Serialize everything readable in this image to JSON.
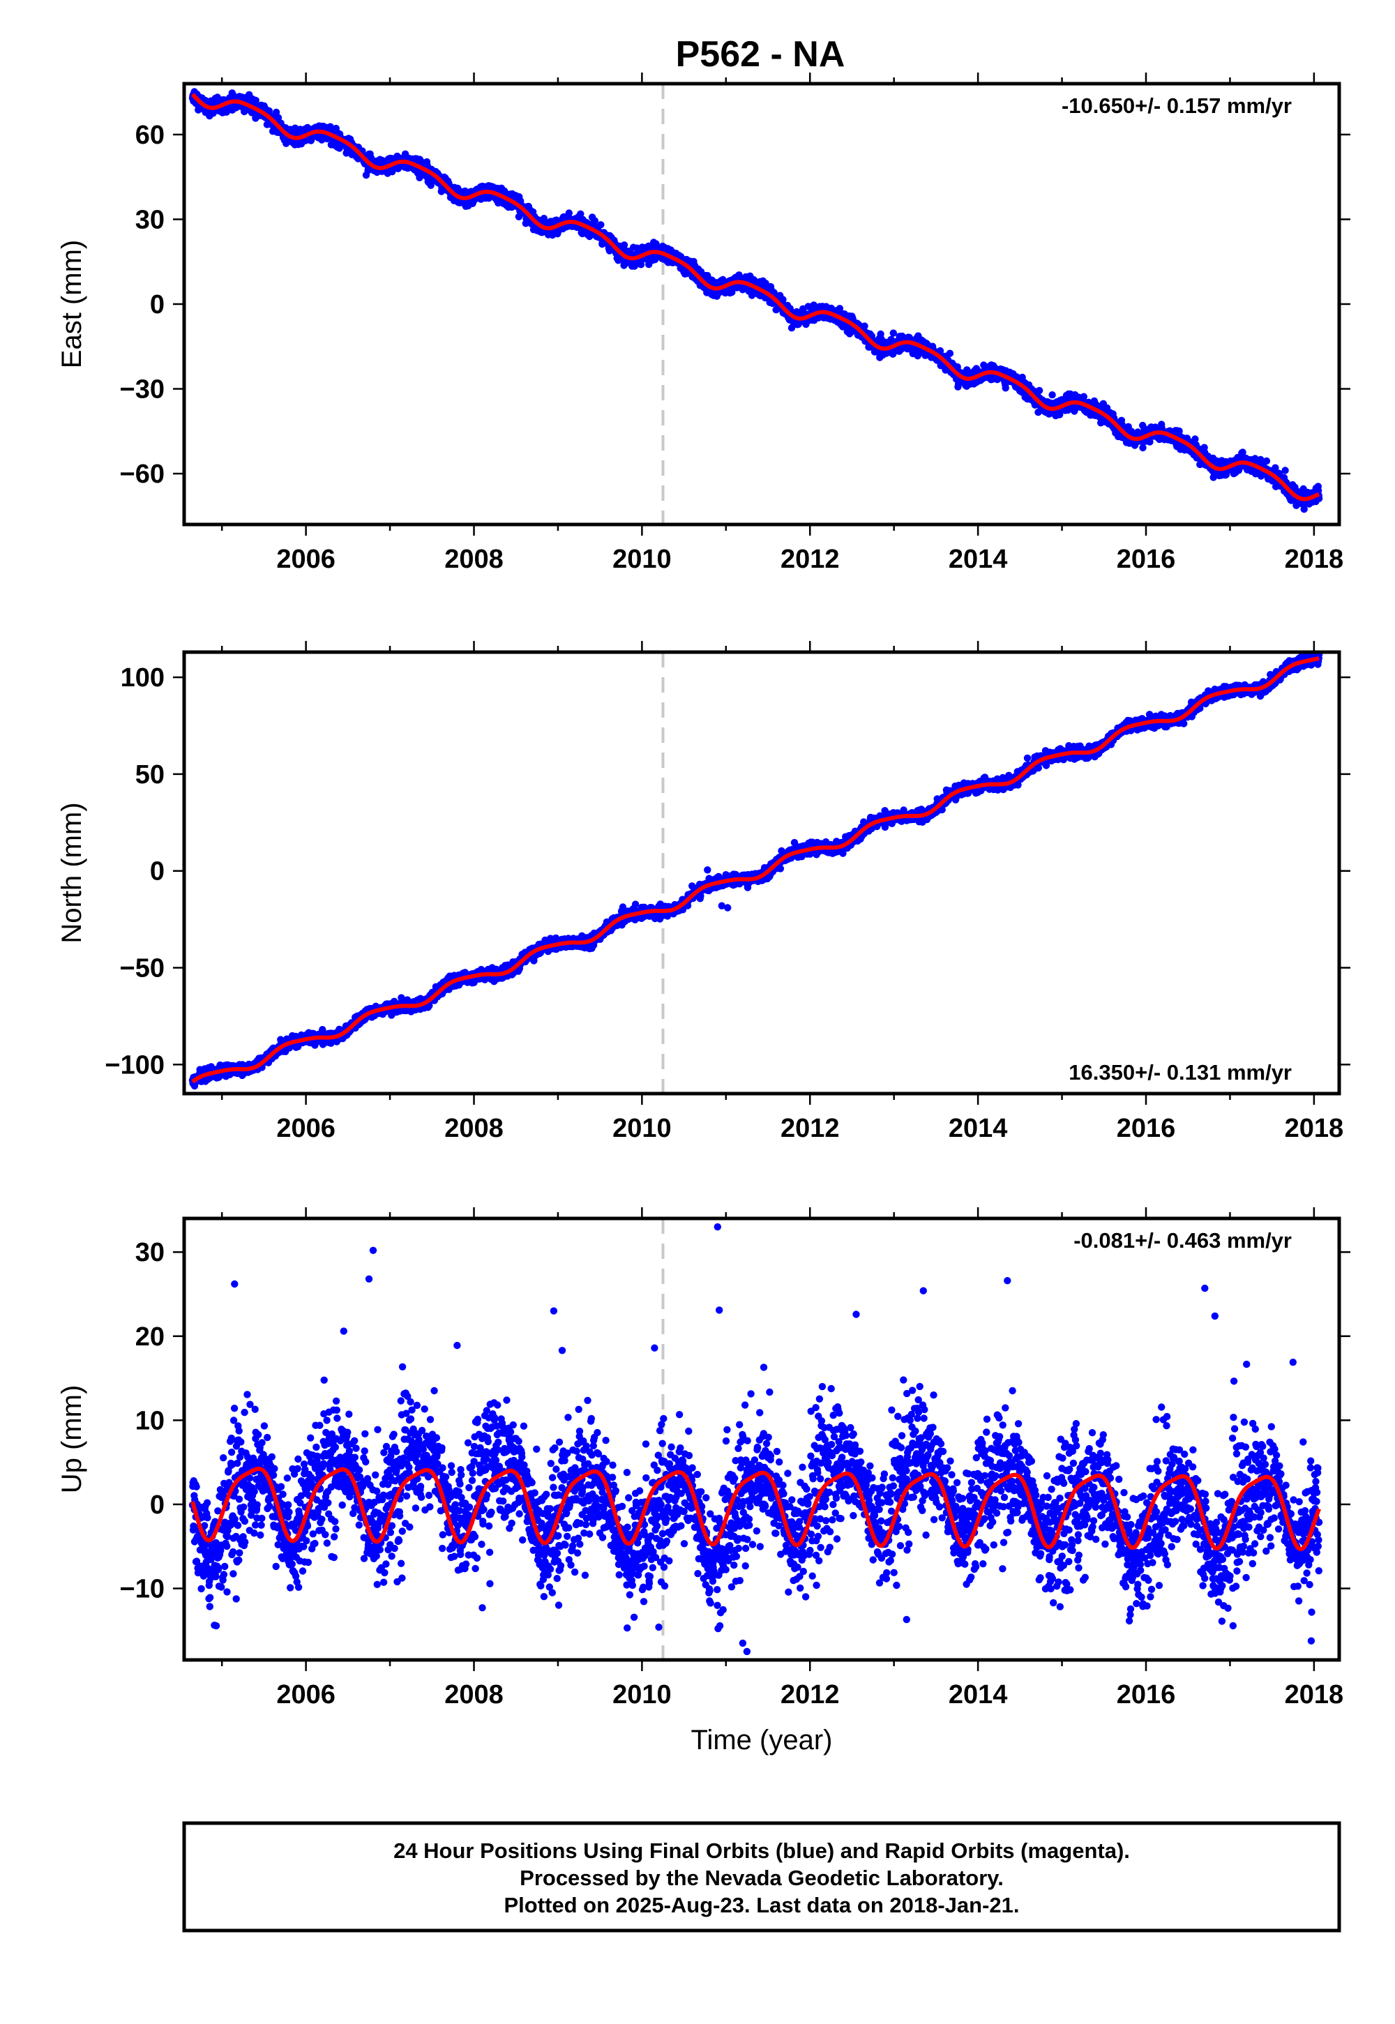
{
  "figure_title": "P562 - NA",
  "footer": {
    "lines": [
      "24 Hour Positions Using Final Orbits (blue) and Rapid Orbits (magenta).",
      "Processed by the Nevada Geodetic Laboratory.",
      "Plotted on 2025-Aug-23. Last data on 2018-Jan-21."
    ]
  },
  "colors": {
    "data": "#0000ff",
    "model": "#ff0000",
    "event_line": "#c8c8c8",
    "frame": "#000000"
  },
  "chart_data": [
    {
      "type": "scatter",
      "component": "east",
      "ylabel": "East (mm)",
      "xlabel": "",
      "xlim": [
        2004.55,
        2018.3
      ],
      "ylim": [
        -78,
        78
      ],
      "x_ticks": [
        2006,
        2008,
        2010,
        2012,
        2014,
        2016,
        2018
      ],
      "y_ticks": [
        -60,
        -30,
        0,
        30,
        60
      ],
      "y_tick_labels": [
        "−60",
        "−30",
        "0",
        "30",
        "60"
      ],
      "x_tick_labels": [
        "2006",
        "2008",
        "2010",
        "2012",
        "2014",
        "2016",
        "2018"
      ],
      "grid": false,
      "rate_text": "-10.650+/- 0.157 mm/yr",
      "rate_position": "top-right",
      "event_line_x": 2010.25,
      "data_range": [
        2004.65,
        2018.06
      ],
      "trend": {
        "rate": -10.65,
        "value_at_2011": 7.5
      },
      "seasonal": {
        "amp_sin": 2.6,
        "amp_cos": -1.2,
        "amp_sin2": 0.6,
        "amp_cos2": 0.2
      },
      "noise_sigma": 1.3,
      "outliers": []
    },
    {
      "type": "scatter",
      "component": "north",
      "ylabel": "North (mm)",
      "xlabel": "",
      "xlim": [
        2004.55,
        2018.3
      ],
      "ylim": [
        -115,
        113
      ],
      "x_ticks": [
        2006,
        2008,
        2010,
        2012,
        2014,
        2016,
        2018
      ],
      "y_ticks": [
        -100,
        -50,
        0,
        50,
        100
      ],
      "y_tick_labels": [
        "−100",
        "−50",
        "0",
        "50",
        "100"
      ],
      "x_tick_labels": [
        "2006",
        "2008",
        "2010",
        "2012",
        "2014",
        "2016",
        "2018"
      ],
      "grid": false,
      "rate_text": "16.350+/- 0.131 mm/yr",
      "rate_position": "bottom-right",
      "event_line_x": 2010.25,
      "data_range": [
        2004.65,
        2018.06
      ],
      "trend": {
        "rate": 16.35,
        "value_at_2011": -6.5
      },
      "seasonal": {
        "amp_sin": -2.2,
        "amp_cos": 1.6,
        "amp_sin2": 0.5,
        "amp_cos2": -0.3
      },
      "noise_sigma": 1.4,
      "outliers": [
        [
          2010.78,
          0.5
        ],
        [
          2010.95,
          -18
        ],
        [
          2011.02,
          -19
        ]
      ]
    },
    {
      "type": "scatter",
      "component": "up",
      "ylabel": "Up (mm)",
      "xlabel": "Time (year)",
      "xlim": [
        2004.55,
        2018.3
      ],
      "ylim": [
        -18.5,
        34
      ],
      "x_ticks": [
        2006,
        2008,
        2010,
        2012,
        2014,
        2016,
        2018
      ],
      "y_ticks": [
        -10,
        0,
        10,
        20,
        30
      ],
      "y_tick_labels": [
        "−10",
        "0",
        "10",
        "20",
        "30"
      ],
      "x_tick_labels": [
        "2006",
        "2008",
        "2010",
        "2012",
        "2014",
        "2016",
        "2018"
      ],
      "grid": false,
      "rate_text": "-0.081+/- 0.463 mm/yr",
      "rate_position": "top-right",
      "event_line_x": 2010.25,
      "data_range": [
        2004.65,
        2018.06
      ],
      "trend": {
        "rate": -0.081,
        "value_at_2011": 0.3
      },
      "seasonal": {
        "amp_sin": 3.2,
        "amp_cos": -2.6,
        "amp_sin2": 0.8,
        "amp_cos2": 0.6
      },
      "noise_sigma": 3.4,
      "outliers": [
        [
          2005.15,
          26.2
        ],
        [
          2006.45,
          20.6
        ],
        [
          2006.75,
          26.8
        ],
        [
          2006.8,
          30.2
        ],
        [
          2007.8,
          18.9
        ],
        [
          2008.95,
          23.0
        ],
        [
          2009.05,
          18.3
        ],
        [
          2010.15,
          18.6
        ],
        [
          2010.9,
          33.0
        ],
        [
          2010.92,
          23.1
        ],
        [
          2011.45,
          16.3
        ],
        [
          2012.55,
          22.6
        ],
        [
          2013.35,
          25.4
        ],
        [
          2014.35,
          26.6
        ],
        [
          2016.7,
          25.7
        ],
        [
          2016.82,
          22.4
        ],
        [
          2017.75,
          16.9
        ],
        [
          2011.25,
          -17.5
        ],
        [
          2011.2,
          -16.5
        ],
        [
          2010.2,
          -14.6
        ],
        [
          2008.1,
          -12.3
        ],
        [
          2013.15,
          -13.7
        ]
      ]
    }
  ]
}
